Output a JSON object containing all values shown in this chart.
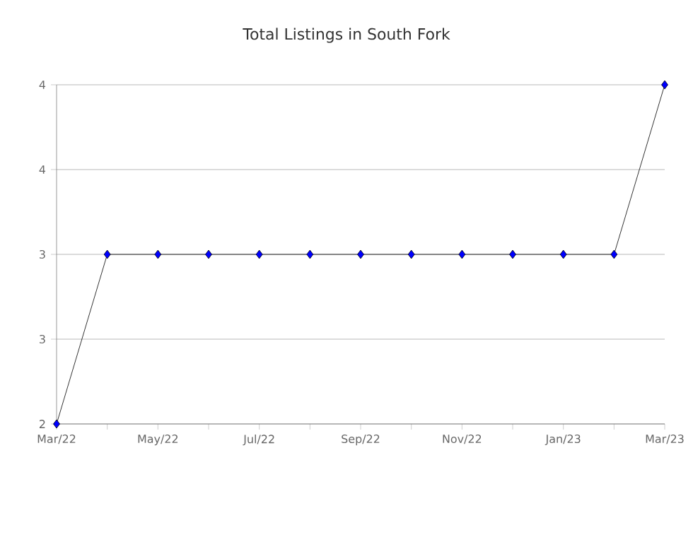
{
  "chart_data": {
    "type": "line",
    "title": "Total Listings in South Fork",
    "x": [
      "2022-03",
      "2022-04",
      "2022-05",
      "2022-06",
      "2022-07",
      "2022-08",
      "2022-09",
      "2022-10",
      "2022-11",
      "2022-12",
      "2023-01",
      "2023-02",
      "2023-03"
    ],
    "values": [
      2,
      3,
      3,
      3,
      3,
      3,
      3,
      3,
      3,
      3,
      3,
      3,
      4
    ],
    "color": "#0000ff",
    "marker": "diamond",
    "grid": "y",
    "xlim": [
      "2022-03",
      "2023-03"
    ],
    "xticks": [
      {
        "value": "2022-03",
        "label": "Mar/22"
      },
      {
        "value": "2022-04",
        "label": null
      },
      {
        "value": "2022-05",
        "label": "May/22"
      },
      {
        "value": "2022-06",
        "label": null
      },
      {
        "value": "2022-07",
        "label": "Jul/22"
      },
      {
        "value": "2022-08",
        "label": null
      },
      {
        "value": "2022-09",
        "label": "Sep/22"
      },
      {
        "value": "2022-10",
        "label": null
      },
      {
        "value": "2022-11",
        "label": "Nov/22"
      },
      {
        "value": "2022-12",
        "label": null
      },
      {
        "value": "2023-01",
        "label": "Jan/23"
      },
      {
        "value": "2023-02",
        "label": null
      },
      {
        "value": "2023-03",
        "label": "Mar/23"
      }
    ],
    "ylim": [
      2,
      4
    ],
    "yticks": [
      2,
      {
        "value": 2.5,
        "label": "3"
      },
      3,
      {
        "value": 3.5,
        "label": "4"
      },
      4
    ]
  }
}
